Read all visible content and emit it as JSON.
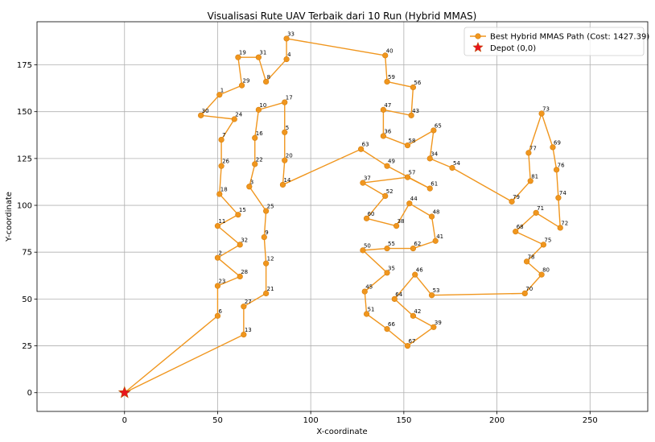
{
  "chart_data": {
    "type": "line",
    "title": "Visualisasi Rute UAV Terbaik dari 10 Run (Hybrid MMAS)",
    "xlabel": "X-coordinate",
    "ylabel": "Y-coordinate",
    "xlim": [
      -47,
      281
    ],
    "ylim": [
      -10,
      198
    ],
    "xticks": [
      0,
      50,
      100,
      150,
      200,
      250
    ],
    "yticks": [
      0,
      25,
      50,
      75,
      100,
      125,
      150,
      175
    ],
    "grid": true,
    "legend_position": "top-right",
    "colors": {
      "route": "#F0961E",
      "route_edge": "#D67E0C",
      "depot": "#E8141C",
      "depot_edge": "#B5600A",
      "grid": "#B0B0B0"
    },
    "series": [
      {
        "name": "Best Hybrid MMAS Path (Cost: 1427.39)",
        "points": [
          {
            "label": "",
            "x": 0,
            "y": 0
          },
          {
            "label": "6",
            "x": 50,
            "y": 41
          },
          {
            "label": "23",
            "x": 50,
            "y": 57
          },
          {
            "label": "28",
            "x": 62,
            "y": 62
          },
          {
            "label": "2",
            "x": 50,
            "y": 72
          },
          {
            "label": "32",
            "x": 62,
            "y": 79
          },
          {
            "label": "11",
            "x": 50,
            "y": 89
          },
          {
            "label": "15",
            "x": 61,
            "y": 95
          },
          {
            "label": "18",
            "x": 51,
            "y": 106
          },
          {
            "label": "26",
            "x": 52,
            "y": 121
          },
          {
            "label": "7",
            "x": 52,
            "y": 135
          },
          {
            "label": "24",
            "x": 59,
            "y": 146
          },
          {
            "label": "30",
            "x": 41,
            "y": 148
          },
          {
            "label": "1",
            "x": 51,
            "y": 159
          },
          {
            "label": "29",
            "x": 63,
            "y": 164
          },
          {
            "label": "19",
            "x": 61,
            "y": 179
          },
          {
            "label": "31",
            "x": 72,
            "y": 179
          },
          {
            "label": "8",
            "x": 76,
            "y": 166
          },
          {
            "label": "4",
            "x": 87,
            "y": 178
          },
          {
            "label": "33",
            "x": 87,
            "y": 189
          },
          {
            "label": "40",
            "x": 140,
            "y": 180
          },
          {
            "label": "59",
            "x": 141,
            "y": 166
          },
          {
            "label": "56",
            "x": 155,
            "y": 163
          },
          {
            "label": "43",
            "x": 154,
            "y": 148
          },
          {
            "label": "47",
            "x": 139,
            "y": 151
          },
          {
            "label": "36",
            "x": 139,
            "y": 137
          },
          {
            "label": "58",
            "x": 152,
            "y": 132
          },
          {
            "label": "65",
            "x": 166,
            "y": 140
          },
          {
            "label": "34",
            "x": 164,
            "y": 125
          },
          {
            "label": "54",
            "x": 176,
            "y": 120
          },
          {
            "label": "79",
            "x": 208,
            "y": 102
          },
          {
            "label": "81",
            "x": 218,
            "y": 113
          },
          {
            "label": "77",
            "x": 217,
            "y": 128
          },
          {
            "label": "73",
            "x": 224,
            "y": 149
          },
          {
            "label": "69",
            "x": 230,
            "y": 131
          },
          {
            "label": "76",
            "x": 232,
            "y": 119
          },
          {
            "label": "74",
            "x": 233,
            "y": 104
          },
          {
            "label": "72",
            "x": 234,
            "y": 88
          },
          {
            "label": "71",
            "x": 221,
            "y": 96
          },
          {
            "label": "68",
            "x": 210,
            "y": 86
          },
          {
            "label": "75",
            "x": 225,
            "y": 79
          },
          {
            "label": "78",
            "x": 216,
            "y": 70
          },
          {
            "label": "80",
            "x": 224,
            "y": 63
          },
          {
            "label": "70",
            "x": 215,
            "y": 53
          },
          {
            "label": "53",
            "x": 165,
            "y": 52
          },
          {
            "label": "46",
            "x": 156,
            "y": 63
          },
          {
            "label": "64",
            "x": 145,
            "y": 50
          },
          {
            "label": "42",
            "x": 155,
            "y": 41
          },
          {
            "label": "39",
            "x": 166,
            "y": 35
          },
          {
            "label": "67",
            "x": 152,
            "y": 25
          },
          {
            "label": "66",
            "x": 141,
            "y": 34
          },
          {
            "label": "51",
            "x": 130,
            "y": 42
          },
          {
            "label": "45",
            "x": 129,
            "y": 54
          },
          {
            "label": "35",
            "x": 141,
            "y": 64
          },
          {
            "label": "50",
            "x": 128,
            "y": 76
          },
          {
            "label": "55",
            "x": 141,
            "y": 77
          },
          {
            "label": "62",
            "x": 155,
            "y": 77
          },
          {
            "label": "41",
            "x": 167,
            "y": 81
          },
          {
            "label": "48",
            "x": 165,
            "y": 94
          },
          {
            "label": "44",
            "x": 153,
            "y": 101
          },
          {
            "label": "38",
            "x": 146,
            "y": 89
          },
          {
            "label": "60",
            "x": 130,
            "y": 93
          },
          {
            "label": "52",
            "x": 140,
            "y": 105
          },
          {
            "label": "37",
            "x": 128,
            "y": 112
          },
          {
            "label": "57",
            "x": 152,
            "y": 115
          },
          {
            "label": "61",
            "x": 164,
            "y": 109
          },
          {
            "label": "49",
            "x": 141,
            "y": 121
          },
          {
            "label": "63",
            "x": 127,
            "y": 130
          },
          {
            "label": "14",
            "x": 85,
            "y": 111
          },
          {
            "label": "20",
            "x": 86,
            "y": 124
          },
          {
            "label": "5",
            "x": 86,
            "y": 139
          },
          {
            "label": "17",
            "x": 86,
            "y": 155
          },
          {
            "label": "10",
            "x": 72,
            "y": 151
          },
          {
            "label": "16",
            "x": 70,
            "y": 136
          },
          {
            "label": "22",
            "x": 70,
            "y": 122
          },
          {
            "label": "3",
            "x": 67,
            "y": 110
          },
          {
            "label": "25",
            "x": 76,
            "y": 97
          },
          {
            "label": "9",
            "x": 75,
            "y": 83
          },
          {
            "label": "12",
            "x": 76,
            "y": 69
          },
          {
            "label": "21",
            "x": 76,
            "y": 53
          },
          {
            "label": "27",
            "x": 64,
            "y": 46
          },
          {
            "label": "13",
            "x": 64,
            "y": 31
          },
          {
            "label": "",
            "x": 0,
            "y": 0
          }
        ]
      },
      {
        "name": "Depot (0,0)",
        "marker": "star",
        "points": [
          {
            "label": "",
            "x": 0,
            "y": 0
          }
        ]
      }
    ]
  }
}
